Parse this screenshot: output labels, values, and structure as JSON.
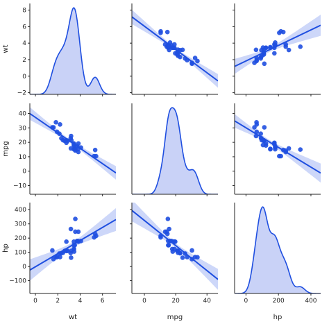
{
  "chart_data": {
    "type": "pairplot",
    "variables": [
      "wt",
      "mpg",
      "hp"
    ],
    "colors": {
      "point": "#1f4fe0",
      "fit": "#1f4fe0",
      "band": "#b8c6f7",
      "kde_fill": "#c9d2f7",
      "kde_line": "#1f4fe0"
    },
    "axes": {
      "wt": {
        "label": "wt",
        "lim": [
          -0.5,
          7.2
        ],
        "ticks": [
          0,
          2,
          4,
          6
        ]
      },
      "mpg": {
        "label": "mpg",
        "lim": [
          -8,
          47
        ],
        "ticks": [
          0,
          20,
          40
        ]
      },
      "hp": {
        "label": "hp",
        "lim": [
          -70,
          460
        ],
        "ticks": [
          0,
          200,
          400
        ]
      }
    },
    "y_axes": {
      "wt": {
        "label": "wt",
        "lim": [
          -2.2,
          8.8
        ],
        "ticks": [
          -2,
          0,
          2,
          4,
          6,
          8
        ]
      },
      "mpg": {
        "label": "mpg",
        "lim": [
          -16,
          47
        ],
        "ticks": [
          -10,
          0,
          10,
          20,
          30,
          40
        ]
      },
      "hp": {
        "label": "hp",
        "lim": [
          -190,
          450
        ],
        "ticks": [
          -100,
          0,
          100,
          200,
          300,
          400
        ]
      }
    },
    "observations": [
      {
        "wt": 2.62,
        "mpg": 21.0,
        "hp": 110
      },
      {
        "wt": 2.875,
        "mpg": 21.0,
        "hp": 110
      },
      {
        "wt": 2.32,
        "mpg": 22.8,
        "hp": 93
      },
      {
        "wt": 3.215,
        "mpg": 21.4,
        "hp": 110
      },
      {
        "wt": 3.44,
        "mpg": 18.7,
        "hp": 175
      },
      {
        "wt": 3.46,
        "mpg": 18.1,
        "hp": 105
      },
      {
        "wt": 3.57,
        "mpg": 14.3,
        "hp": 245
      },
      {
        "wt": 3.19,
        "mpg": 24.4,
        "hp": 62
      },
      {
        "wt": 3.15,
        "mpg": 22.8,
        "hp": 95
      },
      {
        "wt": 3.44,
        "mpg": 19.2,
        "hp": 123
      },
      {
        "wt": 3.44,
        "mpg": 17.8,
        "hp": 123
      },
      {
        "wt": 4.07,
        "mpg": 16.4,
        "hp": 180
      },
      {
        "wt": 3.73,
        "mpg": 17.3,
        "hp": 180
      },
      {
        "wt": 3.78,
        "mpg": 15.2,
        "hp": 180
      },
      {
        "wt": 5.25,
        "mpg": 10.4,
        "hp": 205
      },
      {
        "wt": 5.424,
        "mpg": 10.4,
        "hp": 215
      },
      {
        "wt": 5.345,
        "mpg": 14.7,
        "hp": 230
      },
      {
        "wt": 2.2,
        "mpg": 32.4,
        "hp": 66
      },
      {
        "wt": 1.615,
        "mpg": 30.4,
        "hp": 52
      },
      {
        "wt": 1.835,
        "mpg": 33.9,
        "hp": 65
      },
      {
        "wt": 2.465,
        "mpg": 21.5,
        "hp": 97
      },
      {
        "wt": 3.52,
        "mpg": 15.5,
        "hp": 150
      },
      {
        "wt": 3.435,
        "mpg": 15.2,
        "hp": 150
      },
      {
        "wt": 3.84,
        "mpg": 13.3,
        "hp": 245
      },
      {
        "wt": 3.845,
        "mpg": 19.2,
        "hp": 175
      },
      {
        "wt": 1.935,
        "mpg": 27.3,
        "hp": 66
      },
      {
        "wt": 2.14,
        "mpg": 26.0,
        "hp": 91
      },
      {
        "wt": 1.513,
        "mpg": 30.4,
        "hp": 113
      },
      {
        "wt": 3.17,
        "mpg": 15.8,
        "hp": 264
      },
      {
        "wt": 2.77,
        "mpg": 19.7,
        "hp": 175
      },
      {
        "wt": 3.57,
        "mpg": 15.0,
        "hp": 335
      },
      {
        "wt": 2.78,
        "mpg": 21.4,
        "hp": 109
      }
    ]
  }
}
